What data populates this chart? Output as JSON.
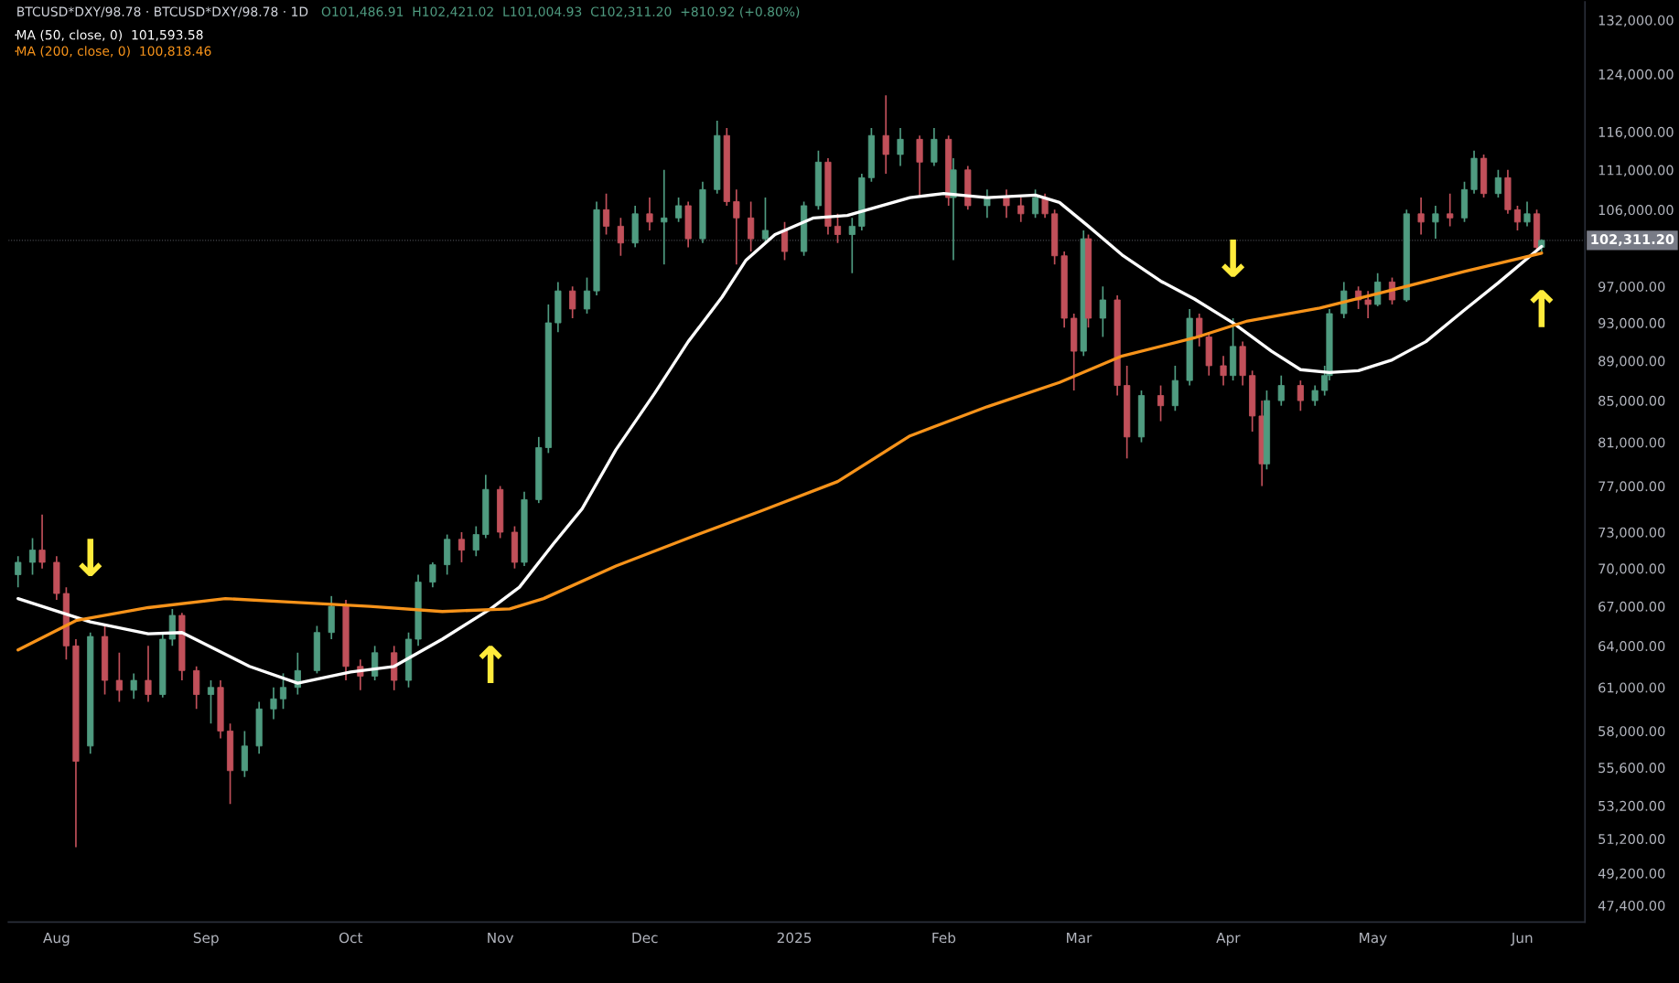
{
  "chart_data": {
    "type": "candlestick",
    "title": "BTCUSD*DXY/98.78 · BTCUSD*DXY/98.78 · 1D",
    "subtitle": "O101,486.91  H102,421.02  L101,004.93  C102,311.20  +810.92 (+0.80%)",
    "x": [
      "2024-07-24",
      "2024-07-27",
      "2024-07-29",
      "2024-08-01",
      "2024-08-03",
      "2024-08-05",
      "2024-08-08",
      "2024-08-11",
      "2024-08-14",
      "2024-08-17",
      "2024-08-20",
      "2024-08-23",
      "2024-08-25",
      "2024-08-27",
      "2024-08-30",
      "2024-09-02",
      "2024-09-04",
      "2024-09-06",
      "2024-09-09",
      "2024-09-12",
      "2024-09-15",
      "2024-09-17",
      "2024-09-20",
      "2024-09-24",
      "2024-09-27",
      "2024-09-30",
      "2024-10-03",
      "2024-10-06",
      "2024-10-10",
      "2024-10-13",
      "2024-10-15",
      "2024-10-18",
      "2024-10-21",
      "2024-10-24",
      "2024-10-27",
      "2024-10-29",
      "2024-11-01",
      "2024-11-04",
      "2024-11-06",
      "2024-11-09",
      "2024-11-11",
      "2024-11-13",
      "2024-11-16",
      "2024-11-19",
      "2024-11-21",
      "2024-11-23",
      "2024-11-26",
      "2024-11-29",
      "2024-12-02",
      "2024-12-05",
      "2024-12-08",
      "2024-12-10",
      "2024-12-13",
      "2024-12-16",
      "2024-12-18",
      "2024-12-20",
      "2024-12-23",
      "2024-12-26",
      "2024-12-30",
      "2025-01-03",
      "2025-01-06",
      "2025-01-08",
      "2025-01-10",
      "2025-01-13",
      "2025-01-15",
      "2025-01-17",
      "2025-01-20",
      "2025-01-23",
      "2025-01-27",
      "2025-01-30",
      "2025-02-02",
      "2025-02-03",
      "2025-02-06",
      "2025-02-10",
      "2025-02-14",
      "2025-02-17",
      "2025-02-20",
      "2025-02-22",
      "2025-02-24",
      "2025-02-26",
      "2025-02-28",
      "2025-03-02",
      "2025-03-03",
      "2025-03-06",
      "2025-03-09",
      "2025-03-11",
      "2025-03-14",
      "2025-03-18",
      "2025-03-21",
      "2025-03-24",
      "2025-03-26",
      "2025-03-28",
      "2025-03-31",
      "2025-04-02",
      "2025-04-04",
      "2025-04-06",
      "2025-04-08",
      "2025-04-09",
      "2025-04-12",
      "2025-04-16",
      "2025-04-19",
      "2025-04-21",
      "2025-04-22",
      "2025-04-25",
      "2025-04-28",
      "2025-04-30",
      "2025-05-02",
      "2025-05-05",
      "2025-05-08",
      "2025-05-11",
      "2025-05-14",
      "2025-05-17",
      "2025-05-20",
      "2025-05-22",
      "2025-05-24",
      "2025-05-27",
      "2025-05-29",
      "2025-05-31",
      "2025-06-02",
      "2025-06-04",
      "2025-06-05"
    ],
    "ohlc": [
      [
        69500,
        71000,
        68500,
        70500
      ],
      [
        70500,
        72500,
        69500,
        71500
      ],
      [
        71500,
        74500,
        70000,
        70500
      ],
      [
        70500,
        71000,
        67500,
        68000
      ],
      [
        68000,
        68500,
        63000,
        64000
      ],
      [
        64000,
        64500,
        50700,
        56000
      ],
      [
        57000,
        65000,
        56500,
        64700
      ],
      [
        64700,
        65500,
        60500,
        61500
      ],
      [
        61500,
        63500,
        60000,
        60800
      ],
      [
        60800,
        62000,
        60200,
        61500
      ],
      [
        61500,
        64000,
        60000,
        60500
      ],
      [
        60500,
        65000,
        60300,
        64500
      ],
      [
        64500,
        66800,
        64000,
        66300
      ],
      [
        66300,
        66500,
        61500,
        62200
      ],
      [
        62200,
        62500,
        59500,
        60500
      ],
      [
        60500,
        61500,
        58500,
        61000
      ],
      [
        61000,
        61500,
        57500,
        58000
      ],
      [
        58000,
        58500,
        53300,
        55400
      ],
      [
        55400,
        58000,
        55000,
        57000
      ],
      [
        57000,
        60000,
        56500,
        59500
      ],
      [
        59500,
        61000,
        58800,
        60200
      ],
      [
        60200,
        62000,
        59500,
        61000
      ],
      [
        61000,
        63500,
        60500,
        62200
      ],
      [
        62200,
        65500,
        62000,
        65000
      ],
      [
        65000,
        67800,
        64500,
        67000
      ],
      [
        67000,
        67500,
        61500,
        62500
      ],
      [
        62500,
        63000,
        60800,
        61800
      ],
      [
        61800,
        64000,
        61500,
        63500
      ],
      [
        63500,
        64000,
        60800,
        61500
      ],
      [
        61500,
        65000,
        61000,
        64500
      ],
      [
        64500,
        69500,
        64000,
        68900
      ],
      [
        68900,
        70500,
        68500,
        70300
      ],
      [
        70300,
        72800,
        69500,
        72400
      ],
      [
        72400,
        73000,
        70500,
        71500
      ],
      [
        71500,
        73500,
        71000,
        72800
      ],
      [
        72800,
        78000,
        72500,
        76700
      ],
      [
        76700,
        77000,
        72500,
        73000
      ],
      [
        73000,
        73500,
        70000,
        70500
      ],
      [
        70500,
        76500,
        70200,
        75800
      ],
      [
        75800,
        81500,
        75500,
        80500
      ],
      [
        80500,
        95000,
        80000,
        93000
      ],
      [
        93000,
        97500,
        92000,
        96500
      ],
      [
        96500,
        97000,
        93500,
        94500
      ],
      [
        94500,
        98000,
        94000,
        96500
      ],
      [
        96500,
        107000,
        96000,
        106000
      ],
      [
        106000,
        108000,
        103000,
        104000
      ],
      [
        104000,
        105000,
        100500,
        102000
      ],
      [
        102000,
        106500,
        101500,
        105500
      ],
      [
        105500,
        107500,
        103500,
        104500
      ],
      [
        104500,
        111000,
        99500,
        105000
      ],
      [
        105000,
        107500,
        104500,
        106500
      ],
      [
        106500,
        107000,
        101500,
        102500
      ],
      [
        102500,
        109500,
        102000,
        108500
      ],
      [
        108500,
        117500,
        108000,
        115500
      ],
      [
        115500,
        116500,
        106500,
        107000
      ],
      [
        107000,
        108500,
        99500,
        105000
      ],
      [
        105000,
        107000,
        101000,
        102500
      ],
      [
        102500,
        107500,
        102000,
        103500
      ],
      [
        103500,
        104500,
        100000,
        101000
      ],
      [
        101000,
        107000,
        100500,
        106500
      ],
      [
        106500,
        113500,
        106000,
        112000
      ],
      [
        112000,
        112500,
        103000,
        104000
      ],
      [
        104000,
        105500,
        102000,
        103000
      ],
      [
        103000,
        105000,
        98500,
        104000
      ],
      [
        104000,
        110500,
        103500,
        110000
      ],
      [
        110000,
        116500,
        109500,
        115500
      ],
      [
        115500,
        121000,
        110500,
        113000
      ],
      [
        113000,
        116500,
        111500,
        115000
      ],
      [
        115000,
        115500,
        107500,
        112000
      ],
      [
        112000,
        116500,
        111500,
        115000
      ],
      [
        115000,
        115500,
        106500,
        107500
      ],
      [
        107500,
        112500,
        100000,
        111000
      ],
      [
        111000,
        111500,
        106000,
        106500
      ],
      [
        106500,
        108500,
        105000,
        107500
      ],
      [
        107500,
        108500,
        105000,
        106500
      ],
      [
        106500,
        107500,
        104500,
        105500
      ],
      [
        105500,
        108500,
        105000,
        107500
      ],
      [
        107500,
        108000,
        105000,
        105500
      ],
      [
        105500,
        106000,
        99500,
        100500
      ],
      [
        100500,
        101000,
        92500,
        93500
      ],
      [
        93500,
        94000,
        86000,
        90000
      ],
      [
        90000,
        103500,
        89500,
        102500
      ],
      [
        102500,
        103000,
        92500,
        93500
      ],
      [
        93500,
        97000,
        91500,
        95500
      ],
      [
        95500,
        96000,
        85500,
        86500
      ],
      [
        86500,
        88500,
        79500,
        81500
      ],
      [
        81500,
        86000,
        81000,
        85500
      ],
      [
        85500,
        86500,
        83000,
        84500
      ],
      [
        84500,
        88500,
        84000,
        87000
      ],
      [
        87000,
        94500,
        86500,
        93500
      ],
      [
        93500,
        94000,
        90500,
        91500
      ],
      [
        91500,
        92000,
        87500,
        88500
      ],
      [
        88500,
        89500,
        86500,
        87500
      ],
      [
        87500,
        93500,
        87000,
        90500
      ],
      [
        90500,
        91000,
        86500,
        87500
      ],
      [
        87500,
        88000,
        82000,
        83500
      ],
      [
        83500,
        85000,
        77000,
        79000
      ],
      [
        79000,
        86000,
        78500,
        85000
      ],
      [
        85000,
        87500,
        84500,
        86500
      ],
      [
        86500,
        87000,
        84000,
        85000
      ],
      [
        85000,
        86500,
        84500,
        86000
      ],
      [
        86000,
        88500,
        85500,
        87500
      ],
      [
        87500,
        94500,
        87000,
        94000
      ],
      [
        94000,
        97500,
        93500,
        96500
      ],
      [
        96500,
        97000,
        94500,
        95500
      ],
      [
        95500,
        96500,
        93500,
        95000
      ],
      [
        95000,
        98500,
        94800,
        97500
      ],
      [
        97500,
        98000,
        95000,
        95500
      ],
      [
        95500,
        106000,
        95300,
        105500
      ],
      [
        105500,
        107500,
        103000,
        104500
      ],
      [
        104500,
        106500,
        102500,
        105500
      ],
      [
        105500,
        108000,
        104000,
        105000
      ],
      [
        105000,
        109500,
        104500,
        108500
      ],
      [
        108500,
        113500,
        108000,
        112500
      ],
      [
        112500,
        113000,
        107500,
        108000
      ],
      [
        108000,
        111000,
        107500,
        110000
      ],
      [
        110000,
        111000,
        105500,
        106000
      ],
      [
        106000,
        106500,
        103500,
        104500
      ],
      [
        104500,
        107000,
        104000,
        105500
      ],
      [
        105500,
        106000,
        101200,
        101486.91
      ],
      [
        101486.91,
        102421.02,
        101004.93,
        102311.2
      ]
    ],
    "series": [
      {
        "type": "line",
        "name": "MA (50, close, 0)  101,593.58",
        "color": "#ffffff",
        "x": [
          "2024-07-24",
          "2024-08-08",
          "2024-08-20",
          "2024-08-27",
          "2024-09-10",
          "2024-09-20",
          "2024-10-01",
          "2024-10-10",
          "2024-10-20",
          "2024-10-30",
          "2024-11-05",
          "2024-11-12",
          "2024-11-18",
          "2024-11-25",
          "2024-12-03",
          "2024-12-10",
          "2024-12-17",
          "2024-12-22",
          "2024-12-28",
          "2025-01-05",
          "2025-01-12",
          "2025-01-18",
          "2025-01-25",
          "2025-02-01",
          "2025-02-10",
          "2025-02-20",
          "2025-02-25",
          "2025-03-03",
          "2025-03-10",
          "2025-03-18",
          "2025-03-25",
          "2025-04-02",
          "2025-04-10",
          "2025-04-16",
          "2025-04-22",
          "2025-04-28",
          "2025-05-05",
          "2025-05-12",
          "2025-05-20",
          "2025-05-27",
          "2025-06-05"
        ],
        "values": [
          67600,
          65800,
          64900,
          65000,
          62500,
          61300,
          62100,
          62500,
          64500,
          66800,
          68500,
          72000,
          75000,
          80300,
          85700,
          91000,
          95800,
          100000,
          103000,
          105000,
          105300,
          106300,
          107500,
          108000,
          107500,
          107800,
          106900,
          104000,
          100600,
          97600,
          95600,
          93000,
          90000,
          88100,
          87800,
          88000,
          89100,
          91000,
          94400,
          97400,
          101593.58
        ]
      },
      {
        "type": "line",
        "name": "MA (200, close, 0)  100,818.46",
        "color": "#f7931a",
        "x": [
          "2024-07-24",
          "2024-08-05",
          "2024-08-20",
          "2024-09-05",
          "2024-09-20",
          "2024-10-05",
          "2024-10-20",
          "2024-11-03",
          "2024-11-10",
          "2024-11-25",
          "2024-12-10",
          "2024-12-25",
          "2025-01-10",
          "2025-01-25",
          "2025-02-10",
          "2025-02-25",
          "2025-03-10",
          "2025-03-25",
          "2025-04-05",
          "2025-04-20",
          "2025-05-05",
          "2025-05-20",
          "2025-06-05"
        ],
        "values": [
          63700,
          65900,
          66900,
          67600,
          67300,
          67000,
          66600,
          66800,
          67600,
          70200,
          72500,
          74800,
          77400,
          81600,
          84400,
          86800,
          89500,
          91400,
          93200,
          94600,
          96600,
          98700,
          100818.46
        ]
      }
    ],
    "annotations": [
      {
        "text": "↓",
        "x": "2024-08-08",
        "y": 65800
      },
      {
        "text": "↑",
        "x": "2024-10-30",
        "y": 66800
      },
      {
        "text": "↓",
        "x": "2025-04-02",
        "y": 93000
      },
      {
        "text": "↑",
        "x": "2025-06-05",
        "y": 100818.46
      }
    ],
    "ref_lines": [
      {
        "axis": "y",
        "value": 102311.2,
        "label": "102,311.20",
        "color": "#787b86",
        "line_style": "dotted"
      }
    ],
    "log": true,
    "ylim": [
      46500,
      134800
    ],
    "yticks": [
      {
        "value": 47400,
        "label": "47,400.00"
      },
      {
        "value": 49200,
        "label": "49,200.00"
      },
      {
        "value": 51200,
        "label": "51,200.00"
      },
      {
        "value": 53200,
        "label": "53,200.00"
      },
      {
        "value": 55600,
        "label": "55,600.00"
      },
      {
        "value": 58000,
        "label": "58,000.00"
      },
      {
        "value": 61000,
        "label": "61,000.00"
      },
      {
        "value": 64000,
        "label": "64,000.00"
      },
      {
        "value": 67000,
        "label": "67,000.00"
      },
      {
        "value": 70000,
        "label": "70,000.00"
      },
      {
        "value": 73000,
        "label": "73,000.00"
      },
      {
        "value": 77000,
        "label": "77,000.00"
      },
      {
        "value": 81000,
        "label": "81,000.00"
      },
      {
        "value": 85000,
        "label": "85,000.00"
      },
      {
        "value": 89000,
        "label": "89,000.00"
      },
      {
        "value": 93000,
        "label": "93,000.00"
      },
      {
        "value": 97000,
        "label": "97,000.00"
      },
      {
        "value": 106000,
        "label": "106,000.00"
      },
      {
        "value": 111000,
        "label": "111,000.00"
      },
      {
        "value": 116000,
        "label": "116,000.00"
      },
      {
        "value": 124000,
        "label": "124,000.00"
      },
      {
        "value": 132000,
        "label": "132,000.00"
      }
    ],
    "xlim": [
      "2024-07-22",
      "2025-06-14"
    ],
    "xticks": [
      {
        "value": "2024-08-01",
        "label": "Aug"
      },
      {
        "value": "2024-09-01",
        "label": "Sep"
      },
      {
        "value": "2024-10-01",
        "label": "Oct"
      },
      {
        "value": "2024-11-01",
        "label": "Nov"
      },
      {
        "value": "2024-12-01",
        "label": "Dec"
      },
      {
        "value": "2025-01-01",
        "label": "2025"
      },
      {
        "value": "2025-02-01",
        "label": "Feb"
      },
      {
        "value": "2025-03-01",
        "label": "Mar"
      },
      {
        "value": "2025-04-01",
        "label": "Apr"
      },
      {
        "value": "2025-05-01",
        "label": "May"
      },
      {
        "value": "2025-06-01",
        "label": "Jun"
      }
    ],
    "grid": false,
    "legend": "top left"
  }
}
